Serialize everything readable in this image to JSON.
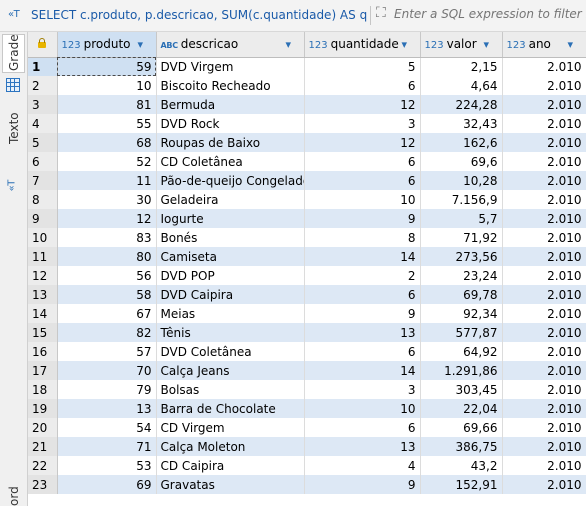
{
  "filter_bar": {
    "sql_icon": "sql-console-icon",
    "query": "SELECT c.produto, p.descricao, SUM(c.quantidade) AS quantidade",
    "placeholder": "Enter a SQL expression to filter results"
  },
  "side_panel": {
    "tab_grid_label": "Grade",
    "tab_text_label": "Texto",
    "bottom_label": "ord"
  },
  "columns": [
    {
      "type": "123",
      "name": "produto"
    },
    {
      "type": "ABC",
      "name": "descricao"
    },
    {
      "type": "123",
      "name": "quantidade"
    },
    {
      "type": "123",
      "name": "valor"
    },
    {
      "type": "123",
      "name": "ano"
    }
  ],
  "rows": [
    {
      "n": "1",
      "produto": "59",
      "descricao": "DVD Virgem",
      "quantidade": "5",
      "valor": "2,15",
      "ano": "2.010"
    },
    {
      "n": "2",
      "produto": "10",
      "descricao": "Biscoito Recheado",
      "quantidade": "6",
      "valor": "4,64",
      "ano": "2.010"
    },
    {
      "n": "3",
      "produto": "81",
      "descricao": "Bermuda",
      "quantidade": "12",
      "valor": "224,28",
      "ano": "2.010"
    },
    {
      "n": "4",
      "produto": "55",
      "descricao": "DVD Rock",
      "quantidade": "3",
      "valor": "32,43",
      "ano": "2.010"
    },
    {
      "n": "5",
      "produto": "68",
      "descricao": "Roupas de Baixo",
      "quantidade": "12",
      "valor": "162,6",
      "ano": "2.010"
    },
    {
      "n": "6",
      "produto": "52",
      "descricao": "CD Coletânea",
      "quantidade": "6",
      "valor": "69,6",
      "ano": "2.010"
    },
    {
      "n": "7",
      "produto": "11",
      "descricao": "Pão-de-queijo Congelado",
      "quantidade": "6",
      "valor": "10,28",
      "ano": "2.010"
    },
    {
      "n": "8",
      "produto": "30",
      "descricao": "Geladeira",
      "quantidade": "10",
      "valor": "7.156,9",
      "ano": "2.010"
    },
    {
      "n": "9",
      "produto": "12",
      "descricao": "Iogurte",
      "quantidade": "9",
      "valor": "5,7",
      "ano": "2.010"
    },
    {
      "n": "10",
      "produto": "83",
      "descricao": "Bonés",
      "quantidade": "8",
      "valor": "71,92",
      "ano": "2.010"
    },
    {
      "n": "11",
      "produto": "80",
      "descricao": "Camiseta",
      "quantidade": "14",
      "valor": "273,56",
      "ano": "2.010"
    },
    {
      "n": "12",
      "produto": "56",
      "descricao": "DVD POP",
      "quantidade": "2",
      "valor": "23,24",
      "ano": "2.010"
    },
    {
      "n": "13",
      "produto": "58",
      "descricao": "DVD Caipira",
      "quantidade": "6",
      "valor": "69,78",
      "ano": "2.010"
    },
    {
      "n": "14",
      "produto": "67",
      "descricao": "Meias",
      "quantidade": "9",
      "valor": "92,34",
      "ano": "2.010"
    },
    {
      "n": "15",
      "produto": "82",
      "descricao": "Tênis",
      "quantidade": "13",
      "valor": "577,87",
      "ano": "2.010"
    },
    {
      "n": "16",
      "produto": "57",
      "descricao": "DVD Coletânea",
      "quantidade": "6",
      "valor": "64,92",
      "ano": "2.010"
    },
    {
      "n": "17",
      "produto": "70",
      "descricao": "Calça Jeans",
      "quantidade": "14",
      "valor": "1.291,86",
      "ano": "2.010"
    },
    {
      "n": "18",
      "produto": "79",
      "descricao": "Bolsas",
      "quantidade": "3",
      "valor": "303,45",
      "ano": "2.010"
    },
    {
      "n": "19",
      "produto": "13",
      "descricao": "Barra de Chocolate",
      "quantidade": "10",
      "valor": "22,04",
      "ano": "2.010"
    },
    {
      "n": "20",
      "produto": "54",
      "descricao": "CD Virgem",
      "quantidade": "6",
      "valor": "69,66",
      "ano": "2.010"
    },
    {
      "n": "21",
      "produto": "71",
      "descricao": "Calça Moleton",
      "quantidade": "13",
      "valor": "386,75",
      "ano": "2.010"
    },
    {
      "n": "22",
      "produto": "53",
      "descricao": "CD Caipira",
      "quantidade": "4",
      "valor": "43,2",
      "ano": "2.010"
    },
    {
      "n": "23",
      "produto": "69",
      "descricao": "Gravatas",
      "quantidade": "9",
      "valor": "152,91",
      "ano": "2.010"
    }
  ],
  "colors": {
    "accent": "#2a6fb5",
    "row_alt": "#dde8f5",
    "selected": "#cfe0f2",
    "query_text": "#1a5aa8"
  }
}
